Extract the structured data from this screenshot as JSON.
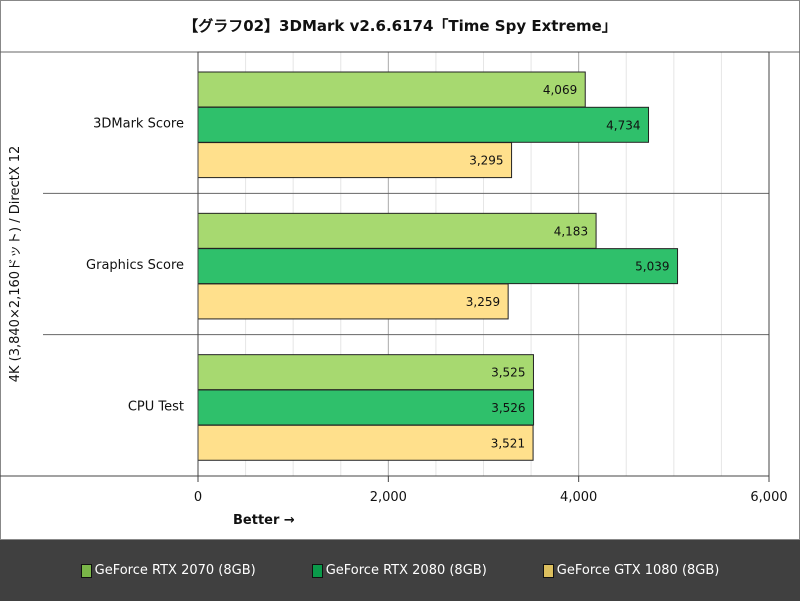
{
  "chart_data": {
    "type": "bar",
    "orientation": "horizontal",
    "title": "【グラフ02】3DMark v2.6.6174「Time Spy Extreme」",
    "ylabel": "4K (3,840×2,160ドット) / DirectX 12",
    "xlabel": "Better →",
    "categories": [
      "3DMark Score",
      "Graphics Score",
      "CPU Test"
    ],
    "xlim": [
      0,
      6000
    ],
    "xticks": [
      "0",
      "2,000",
      "4,000",
      "6,000"
    ],
    "grid": true,
    "legend_position": "bottom",
    "series": [
      {
        "name": "GeForce RTX 2070 (8GB)",
        "color": "#a7d970",
        "legend_color": "#7ab648",
        "values": [
          4069,
          4183,
          3525
        ],
        "labels": [
          "4,069",
          "4,183",
          "3,525"
        ]
      },
      {
        "name": "GeForce RTX 2080 (8GB)",
        "color": "#2fc06b",
        "legend_color": "#0a9a4a",
        "values": [
          4734,
          5039,
          3526
        ],
        "labels": [
          "4,734",
          "5,039",
          "3,526"
        ]
      },
      {
        "name": "GeForce GTX 1080 (8GB)",
        "color": "#ffe08c",
        "legend_color": "#dcbf5e",
        "values": [
          3295,
          3259,
          3521
        ],
        "labels": [
          "3,295",
          "3,259",
          "3,521"
        ]
      }
    ]
  }
}
